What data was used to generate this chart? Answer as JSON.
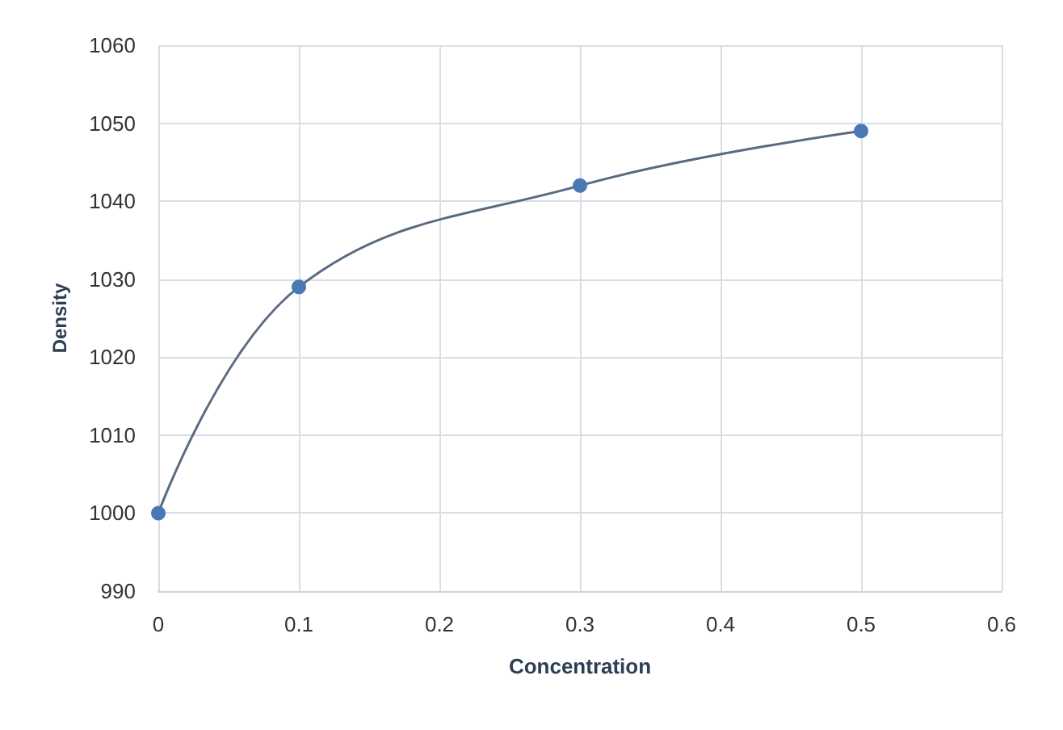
{
  "chart_data": {
    "type": "line",
    "xlabel": "Concentration",
    "ylabel": "Density",
    "x": [
      0,
      0.1,
      0.3,
      0.5
    ],
    "series": [
      {
        "color": "#4a78b4",
        "values": [
          1000,
          1029,
          1042,
          1049
        ]
      }
    ],
    "xlim": [
      0,
      0.6
    ],
    "xticks": [
      0,
      0.1,
      0.2,
      0.3,
      0.4,
      0.5,
      0.6
    ],
    "ylim": [
      990,
      1060
    ],
    "yticks": [
      990,
      1000,
      1010,
      1020,
      1030,
      1040,
      1050,
      1060
    ],
    "grid": true,
    "marker": "circle",
    "line_style": "solid"
  }
}
